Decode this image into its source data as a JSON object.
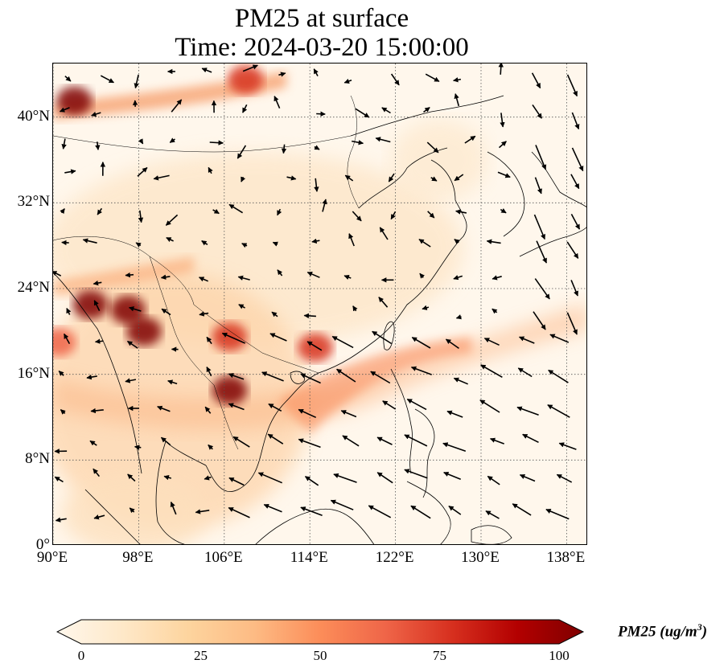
{
  "title": {
    "line1": "PM25 at surface",
    "line2": "Time: 2024-03-20 15:00:00"
  },
  "map": {
    "extent": {
      "lon": [
        90,
        140
      ],
      "lat": [
        0,
        45
      ]
    },
    "lat_ticks": [
      {
        "value": 0,
        "label": "0°"
      },
      {
        "value": 8,
        "label": "8°N"
      },
      {
        "value": 16,
        "label": "16°N"
      },
      {
        "value": 24,
        "label": "24°N"
      },
      {
        "value": 32,
        "label": "32°N"
      },
      {
        "value": 40,
        "label": "40°N"
      }
    ],
    "lon_ticks": [
      {
        "value": 90,
        "label": "90°E"
      },
      {
        "value": 98,
        "label": "98°E"
      },
      {
        "value": 106,
        "label": "106°E"
      },
      {
        "value": 114,
        "label": "114°E"
      },
      {
        "value": 122,
        "label": "122°E"
      },
      {
        "value": 130,
        "label": "130°E"
      },
      {
        "value": 138,
        "label": "138°E"
      }
    ],
    "gridlines": true,
    "background_color": "#fff7ec",
    "coastline_color": "#000000",
    "pollution_hotspots": [
      {
        "name": "northern-myanmar",
        "lon": 93.5,
        "lat": 22.5,
        "value": 100
      },
      {
        "name": "myanmar-thailand-border",
        "lon": 97.0,
        "lat": 22.0,
        "value": 100
      },
      {
        "name": "laos-north",
        "lon": 98.5,
        "lat": 20.0,
        "value": 95
      },
      {
        "name": "cambodia",
        "lon": 106.5,
        "lat": 14.5,
        "value": 95
      },
      {
        "name": "vietnam-coast",
        "lon": 106.5,
        "lat": 19.5,
        "value": 80
      },
      {
        "name": "south-china-sea-plume",
        "lon": 114.5,
        "lat": 18.5,
        "value": 70
      },
      {
        "name": "inner-mongolia",
        "lon": 92.0,
        "lat": 41.5,
        "value": 95
      },
      {
        "name": "bay-of-bengal",
        "lon": 90.5,
        "lat": 19.0,
        "value": 60
      },
      {
        "name": "north-korea-border",
        "lon": 108,
        "lat": 43.5,
        "value": 70
      }
    ],
    "wind_vectors_shown": true
  },
  "colorbar": {
    "min": 0,
    "max": 100,
    "ticks": [
      "0",
      "25",
      "50",
      "75",
      "100"
    ],
    "colors": [
      "#fff7ec",
      "#fee8c8",
      "#fdd49e",
      "#fdbb84",
      "#fc8d59",
      "#ef6548",
      "#d7301f",
      "#b30000",
      "#7f0000"
    ],
    "label": "PM25 (ug/m",
    "label_sup": "3",
    "label_end": ")"
  }
}
